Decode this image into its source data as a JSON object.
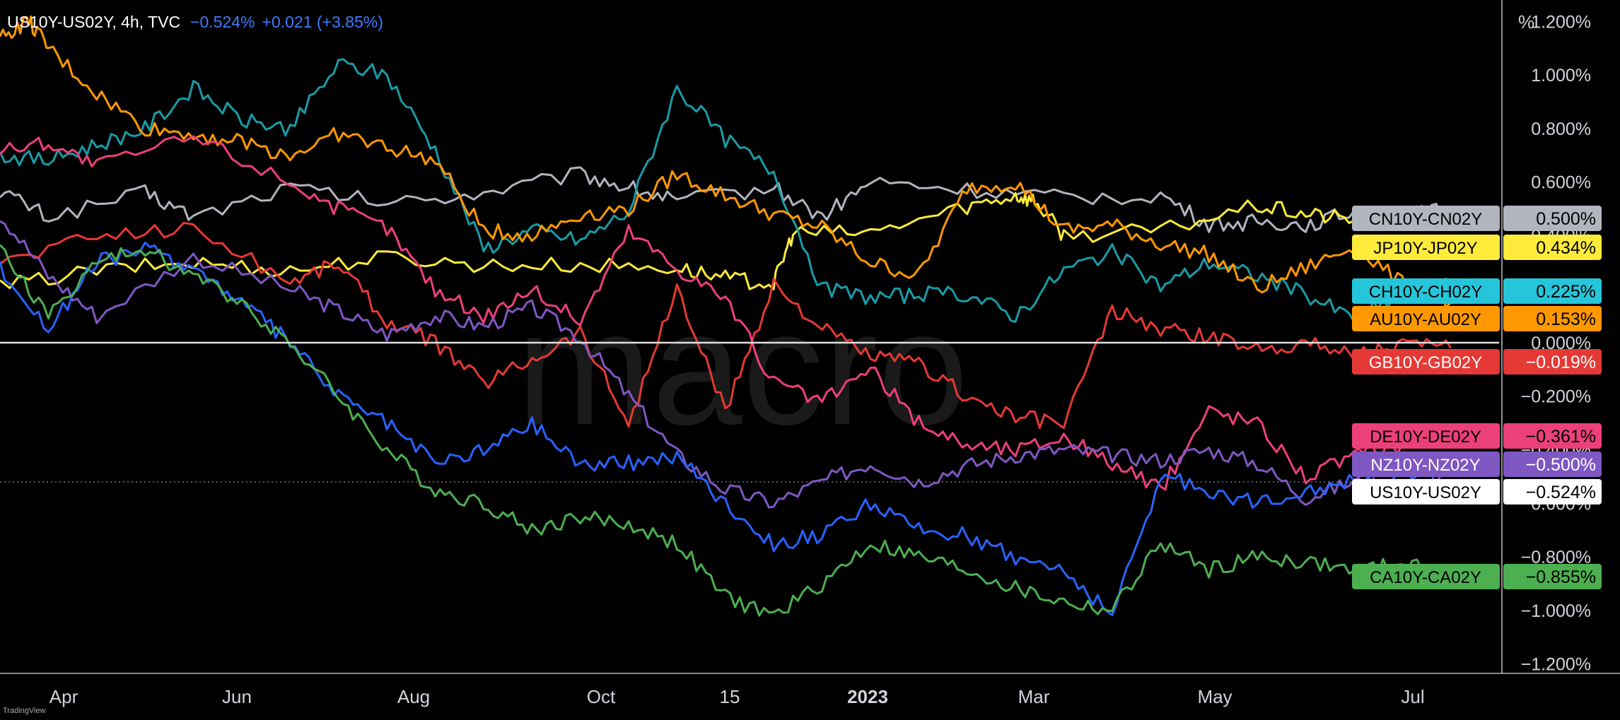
{
  "header": {
    "symbol": "US10Y-US02Y, 4h, TVC",
    "value": "−0.524%",
    "change": "+0.021 (+3.85%)"
  },
  "watermark": "macro",
  "credit": "TradingView",
  "chart_data": {
    "type": "line",
    "title": "",
    "x_labels": [
      "Apr",
      "Jun",
      "Aug",
      "Oct",
      "15",
      "2023",
      "Mar",
      "May",
      "Jul"
    ],
    "y_unit_label": "%",
    "y_tick_labels": [
      "1.200%",
      "1.000%",
      "0.800%",
      "0.600%",
      "0.400%",
      "0.200%",
      "0.000%",
      "−0.200%",
      "−0.400%",
      "−0.600%",
      "−0.800%",
      "−1.000%",
      "−1.200%"
    ],
    "y_ticks": [
      1.2,
      1.0,
      0.8,
      0.6,
      0.4,
      0.2,
      0.0,
      -0.2,
      -0.4,
      -0.6,
      -0.8,
      -1.0,
      -1.2
    ],
    "ylim": [
      -1.23,
      1.28
    ],
    "xlim": [
      0,
      15.5
    ],
    "grid": false,
    "zero_line": true,
    "series": [
      {
        "name": "CN10Y-CN02Y",
        "label": "0.500%",
        "color": "#b2b5be",
        "label_text_color": "#000000",
        "x": [
          0,
          0.5,
          1.5,
          2,
          3,
          4,
          5,
          6,
          6.5,
          7,
          8,
          8.5,
          9,
          10,
          11,
          12,
          12.5,
          13,
          13.5,
          14,
          14.5,
          15.0
        ],
        "y": [
          0.57,
          0.47,
          0.56,
          0.47,
          0.58,
          0.52,
          0.56,
          0.63,
          0.58,
          0.53,
          0.58,
          0.47,
          0.6,
          0.57,
          0.54,
          0.55,
          0.44,
          0.45,
          0.44,
          0.49,
          0.47,
          0.5
        ]
      },
      {
        "name": "JP10Y-JP02Y",
        "label": "0.434%",
        "color": "#ffeb3b",
        "label_text_color": "#000000",
        "x": [
          0,
          1,
          2,
          3,
          4,
          5,
          6,
          7,
          7.5,
          8,
          8.2,
          9,
          10,
          10.5,
          10.7,
          11,
          12,
          13,
          13.5,
          14,
          14.5,
          15.0
        ],
        "y": [
          0.21,
          0.27,
          0.3,
          0.27,
          0.32,
          0.29,
          0.29,
          0.28,
          0.24,
          0.22,
          0.41,
          0.41,
          0.51,
          0.55,
          0.53,
          0.4,
          0.42,
          0.51,
          0.48,
          0.46,
          0.45,
          0.43
        ]
      },
      {
        "name": "CH10Y-CH02Y",
        "label": "0.225%",
        "color": "#26c6da",
        "label_text_color": "#000000",
        "line_color": "#1a9ba6",
        "x": [
          0,
          0.5,
          1,
          1.5,
          2,
          2.5,
          3,
          3.5,
          4,
          4.5,
          5,
          5.5,
          6,
          6.5,
          7,
          7.5,
          8,
          8.5,
          9,
          9.5,
          10,
          10.5,
          11,
          11.5,
          12,
          12.5,
          13,
          13.5,
          14,
          14.5,
          15.0
        ],
        "y": [
          0.7,
          0.68,
          0.74,
          0.8,
          0.95,
          0.83,
          0.8,
          1.04,
          1.0,
          0.72,
          0.35,
          0.42,
          0.38,
          0.49,
          0.95,
          0.76,
          0.64,
          0.2,
          0.17,
          0.18,
          0.18,
          0.1,
          0.27,
          0.34,
          0.21,
          0.3,
          0.25,
          0.18,
          0.09,
          0.18,
          0.22
        ]
      },
      {
        "name": "AU10Y-AU02Y",
        "label": "0.153%",
        "color": "#ff9800",
        "label_text_color": "#000000",
        "x": [
          0,
          0.3,
          0.5,
          1,
          1.5,
          2,
          2.5,
          3,
          3.5,
          4,
          4.5,
          5,
          5.5,
          6,
          6.5,
          7,
          7.5,
          8,
          8.5,
          9,
          9.5,
          10,
          10.5,
          11,
          11.5,
          12,
          12.5,
          13,
          13.5,
          14,
          14.5,
          15.0
        ],
        "y": [
          1.14,
          1.2,
          1.1,
          0.93,
          0.8,
          0.78,
          0.75,
          0.7,
          0.78,
          0.73,
          0.68,
          0.42,
          0.4,
          0.48,
          0.5,
          0.63,
          0.55,
          0.48,
          0.43,
          0.3,
          0.25,
          0.58,
          0.6,
          0.42,
          0.44,
          0.37,
          0.33,
          0.2,
          0.28,
          0.36,
          0.22,
          0.15
        ]
      },
      {
        "name": "GB10Y-GB02Y",
        "label": "−0.019%",
        "color": "#e53935",
        "label_text_color": "#ffffff",
        "x": [
          0,
          1,
          2,
          3,
          3.5,
          4,
          4.5,
          5,
          5.5,
          6,
          6.5,
          7,
          7.5,
          8,
          8.5,
          9,
          9.5,
          10,
          10.5,
          11,
          11.5,
          12,
          12.5,
          13,
          13.5,
          14,
          14.5,
          15.0
        ],
        "y": [
          0.3,
          0.4,
          0.43,
          0.23,
          0.3,
          0.08,
          0.0,
          -0.15,
          -0.06,
          0.04,
          -0.3,
          0.2,
          -0.26,
          0.22,
          0.05,
          -0.05,
          -0.08,
          -0.2,
          -0.28,
          -0.3,
          0.12,
          0.05,
          0.02,
          -0.02,
          0.0,
          -0.04,
          -0.01,
          -0.02
        ]
      },
      {
        "name": "DE10Y-DE02Y",
        "label": "−0.361%",
        "color": "#ec407a",
        "label_text_color": "#000000",
        "x": [
          0,
          0.5,
          1,
          2,
          3,
          3.5,
          4,
          4.5,
          5,
          5.5,
          6,
          6.5,
          7,
          7.5,
          8,
          8.5,
          9,
          9.5,
          10,
          10.5,
          11,
          11.5,
          12,
          12.5,
          13,
          13.5,
          14,
          14.5,
          15.0
        ],
        "y": [
          0.72,
          0.75,
          0.66,
          0.77,
          0.6,
          0.5,
          0.43,
          0.2,
          0.1,
          0.2,
          0.08,
          0.42,
          0.28,
          0.17,
          -0.15,
          -0.22,
          -0.1,
          -0.3,
          -0.38,
          -0.4,
          -0.35,
          -0.45,
          -0.55,
          -0.25,
          -0.3,
          -0.5,
          -0.42,
          -0.38,
          -0.36
        ]
      },
      {
        "name": "NZ10Y-NZ02Y",
        "label": "−0.500%",
        "color": "#7e57c2",
        "label_text_color": "#ffffff",
        "x": [
          0,
          0.5,
          1,
          2,
          3,
          3.5,
          4,
          4.5,
          5,
          5.5,
          6,
          6.5,
          7,
          7.5,
          8,
          8.5,
          9,
          9.5,
          10,
          10.5,
          11,
          11.5,
          12,
          12.5,
          13,
          13.5,
          14,
          14.5,
          15.0
        ],
        "y": [
          0.48,
          0.25,
          0.1,
          0.32,
          0.2,
          0.12,
          0.03,
          0.1,
          0.06,
          0.13,
          0.02,
          -0.2,
          -0.42,
          -0.55,
          -0.6,
          -0.52,
          -0.45,
          -0.52,
          -0.46,
          -0.42,
          -0.4,
          -0.42,
          -0.44,
          -0.4,
          -0.45,
          -0.58,
          -0.52,
          -0.55,
          -0.5
        ]
      },
      {
        "name": "US10Y-US02Y",
        "label": "−0.524%",
        "color": "#2962ff",
        "label_bg": "#ffffff",
        "label_text_color": "#000000",
        "x": [
          0,
          0.5,
          1,
          1.5,
          2,
          2.5,
          3,
          3.5,
          4,
          4.5,
          5,
          5.5,
          6,
          6.5,
          7,
          7.5,
          8,
          8.5,
          9,
          9.5,
          10,
          10.5,
          11,
          11.5,
          12,
          12.5,
          13,
          13.5,
          14,
          14.5,
          15.0
        ],
        "y": [
          0.28,
          0.05,
          0.3,
          0.35,
          0.28,
          0.15,
          0.0,
          -0.2,
          -0.3,
          -0.45,
          -0.4,
          -0.3,
          -0.45,
          -0.45,
          -0.42,
          -0.6,
          -0.75,
          -0.72,
          -0.6,
          -0.7,
          -0.72,
          -0.8,
          -0.85,
          -1.02,
          -0.5,
          -0.55,
          -0.6,
          -0.55,
          -0.52,
          -0.5,
          -0.52
        ]
      },
      {
        "name": "CA10Y-CA02Y",
        "label": "−0.855%",
        "color": "#4caf50",
        "label_text_color": "#000000",
        "x": [
          0,
          0.5,
          1,
          1.5,
          2,
          2.5,
          3,
          3.5,
          4,
          4.5,
          5,
          5.5,
          6,
          6.5,
          7,
          7.5,
          8,
          8.5,
          9,
          9.5,
          10,
          10.5,
          11,
          11.5,
          12,
          12.5,
          13,
          13.5,
          14,
          14.5,
          15.0
        ],
        "y": [
          0.35,
          0.1,
          0.3,
          0.35,
          0.25,
          0.15,
          0.0,
          -0.2,
          -0.4,
          -0.55,
          -0.6,
          -0.7,
          -0.65,
          -0.68,
          -0.75,
          -0.95,
          -1.02,
          -0.9,
          -0.75,
          -0.8,
          -0.85,
          -0.92,
          -0.97,
          -1.0,
          -0.75,
          -0.85,
          -0.8,
          -0.82,
          -0.85,
          -0.83,
          -0.86
        ]
      }
    ]
  }
}
